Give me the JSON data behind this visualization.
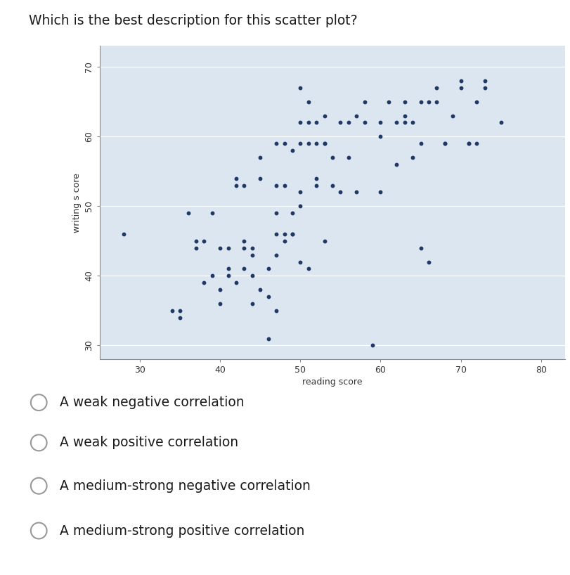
{
  "title": "Which is the best description for this scatter plot?",
  "xlabel": "reading score",
  "ylabel": "writing s core",
  "xlim": [
    25,
    83
  ],
  "ylim": [
    28,
    73
  ],
  "xticks": [
    30,
    40,
    50,
    60,
    70,
    80
  ],
  "yticks": [
    30,
    40,
    50,
    60,
    70
  ],
  "dot_color": "#1F3864",
  "plot_bg": "#dce6f1",
  "outer_bg": "#dce6f1",
  "fig_bg": "#ffffff",
  "dot_size": 10,
  "options": [
    "A weak negative correlation",
    "A weak positive correlation",
    "A medium-strong negative correlation",
    "A medium-strong positive correlation"
  ],
  "x_data": [
    28,
    34,
    35,
    35,
    36,
    37,
    37,
    38,
    38,
    39,
    39,
    40,
    40,
    40,
    41,
    41,
    41,
    42,
    42,
    42,
    43,
    43,
    43,
    43,
    44,
    44,
    44,
    44,
    45,
    45,
    45,
    46,
    46,
    46,
    47,
    47,
    47,
    47,
    47,
    47,
    48,
    48,
    48,
    48,
    49,
    49,
    49,
    49,
    50,
    50,
    50,
    50,
    50,
    50,
    51,
    51,
    51,
    51,
    52,
    52,
    52,
    52,
    53,
    53,
    53,
    53,
    54,
    54,
    55,
    55,
    56,
    56,
    57,
    57,
    58,
    58,
    59,
    60,
    60,
    60,
    61,
    62,
    62,
    63,
    63,
    63,
    64,
    64,
    65,
    65,
    65,
    66,
    66,
    67,
    67,
    68,
    68,
    69,
    70,
    70,
    71,
    71,
    72,
    72,
    73,
    73,
    75
  ],
  "y_data": [
    46,
    35,
    35,
    34,
    49,
    45,
    44,
    45,
    39,
    49,
    40,
    36,
    38,
    44,
    41,
    40,
    44,
    54,
    53,
    39,
    53,
    45,
    44,
    41,
    44,
    43,
    40,
    36,
    57,
    54,
    38,
    31,
    41,
    37,
    59,
    53,
    46,
    43,
    49,
    35,
    59,
    53,
    46,
    45,
    58,
    49,
    46,
    46,
    67,
    62,
    59,
    52,
    50,
    42,
    65,
    62,
    59,
    41,
    62,
    59,
    54,
    53,
    63,
    59,
    59,
    45,
    57,
    53,
    62,
    52,
    62,
    57,
    63,
    52,
    65,
    62,
    30,
    62,
    60,
    52,
    65,
    62,
    56,
    65,
    63,
    62,
    62,
    57,
    65,
    59,
    44,
    65,
    42,
    67,
    65,
    59,
    59,
    63,
    68,
    67,
    59,
    59,
    65,
    59,
    68,
    67,
    62
  ]
}
